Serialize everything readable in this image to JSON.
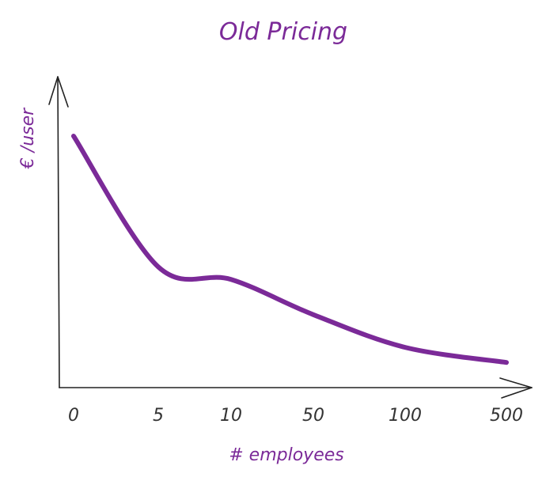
{
  "chart_data": {
    "type": "line",
    "title": "Old Pricing",
    "xlabel": "# employees",
    "ylabel": "€ /user",
    "categories": [
      "0",
      "5",
      "10",
      "50",
      "100",
      "500"
    ],
    "series": [
      {
        "values": [
          100,
          48,
          43,
          29,
          16,
          10
        ]
      }
    ],
    "ylim": [
      0,
      100
    ],
    "grid": false,
    "legend": "none",
    "colors": {
      "line": "#7b2a98",
      "title": "#7b2a98",
      "axes": "#222222",
      "ticks": "#333333"
    }
  }
}
